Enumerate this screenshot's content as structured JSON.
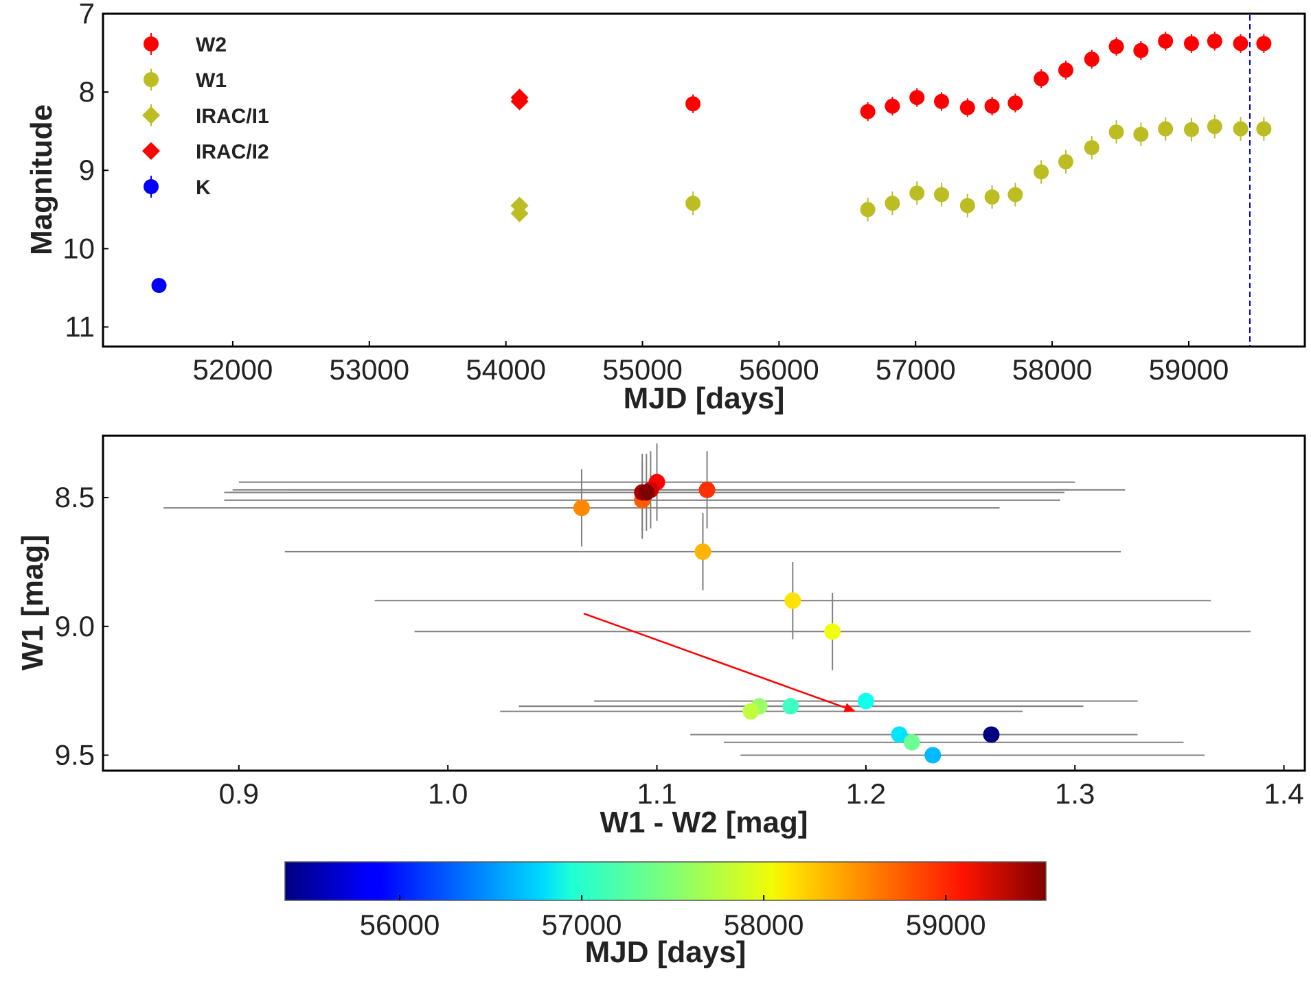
{
  "chart_data": [
    {
      "type": "scatter",
      "xlabel": "MJD [days]",
      "ylabel": "Magnitude",
      "xlim": [
        51050,
        59850
      ],
      "ylim": [
        7,
        11.25
      ],
      "y_inverted": true,
      "xticks": [
        52000,
        53000,
        54000,
        55000,
        56000,
        57000,
        58000,
        59000
      ],
      "yticks": [
        7,
        8,
        9,
        10,
        11
      ],
      "vline": {
        "x": 59550,
        "color": "#0000cc",
        "style": "dashed"
      },
      "legend_position": "top-left",
      "series": [
        {
          "name": "W2",
          "marker": "circle",
          "color": "#ff0000",
          "x": [
            55370,
            56650,
            56830,
            57010,
            57190,
            57380,
            57560,
            57730,
            57920,
            58100,
            58290,
            58470,
            58650,
            58830,
            59020,
            59190,
            59380,
            59550
          ],
          "y": [
            8.15,
            8.25,
            8.18,
            8.07,
            8.12,
            8.2,
            8.18,
            8.14,
            7.83,
            7.72,
            7.58,
            7.42,
            7.47,
            7.35,
            7.38,
            7.35,
            7.38,
            7.38
          ],
          "yerr": 0.12
        },
        {
          "name": "W1",
          "marker": "circle",
          "color": "#bcbd22",
          "x": [
            55370,
            56650,
            56830,
            57010,
            57190,
            57380,
            57560,
            57730,
            57920,
            58100,
            58290,
            58470,
            58650,
            58830,
            59020,
            59190,
            59380,
            59550
          ],
          "y": [
            9.42,
            9.5,
            9.42,
            9.29,
            9.31,
            9.45,
            9.34,
            9.31,
            9.02,
            8.89,
            8.71,
            8.51,
            8.54,
            8.47,
            8.48,
            8.44,
            8.47,
            8.47
          ],
          "yerr": 0.15
        },
        {
          "name": "IRAC/I1",
          "marker": "diamond",
          "color": "#bcbd22",
          "x": [
            54100,
            54100
          ],
          "y": [
            9.45,
            9.55
          ],
          "yerr": 0.0
        },
        {
          "name": "IRAC/I2",
          "marker": "diamond",
          "color": "#ff0000",
          "x": [
            54100,
            54100
          ],
          "y": [
            8.07,
            8.12
          ],
          "yerr": 0.0
        },
        {
          "name": "K",
          "marker": "circle",
          "color": "#0000ff",
          "x": [
            51460
          ],
          "y": [
            10.47
          ],
          "yerr": 0.0
        }
      ]
    },
    {
      "type": "scatter",
      "xlabel": "W1 - W2 [mag]",
      "ylabel": "W1 [mag]",
      "xlim": [
        0.835,
        1.41
      ],
      "ylim": [
        8.26,
        9.56
      ],
      "y_inverted": true,
      "xticks": [
        "0.9",
        "1.0",
        "1.1",
        "1.2",
        "1.3",
        "1.4"
      ],
      "yticks": [
        "8.5",
        "9.0",
        "9.5"
      ],
      "arrow": {
        "x1": 1.065,
        "y1": 8.95,
        "x2": 1.195,
        "y2": 9.33,
        "color": "#ff0000"
      },
      "points": [
        {
          "mjd": 55370,
          "x": 1.26,
          "y": 9.42,
          "xerr": [
            0.095,
            0.07
          ],
          "yerr": 0.0
        },
        {
          "mjd": 56650,
          "x": 1.232,
          "y": 9.5,
          "xerr": [
            0.092,
            0.13
          ],
          "yerr": 0.0
        },
        {
          "mjd": 56830,
          "x": 1.216,
          "y": 9.42,
          "xerr": [
            0.1,
            0.09
          ],
          "yerr": 0.0
        },
        {
          "mjd": 57010,
          "x": 1.2,
          "y": 9.29,
          "xerr": [
            0.13,
            0.13
          ],
          "yerr": 0.0
        },
        {
          "mjd": 57190,
          "x": 1.164,
          "y": 9.31,
          "xerr": [
            0.13,
            0.14
          ],
          "yerr": 0.0
        },
        {
          "mjd": 57380,
          "x": 1.222,
          "y": 9.45,
          "xerr": [
            0.09,
            0.13
          ],
          "yerr": 0.0
        },
        {
          "mjd": 57560,
          "x": 1.149,
          "y": 9.31,
          "xerr": [
            0.115,
            0.155
          ],
          "yerr": 0.0
        },
        {
          "mjd": 57730,
          "x": 1.145,
          "y": 9.33,
          "xerr": [
            0.12,
            0.13
          ],
          "yerr": 0.0
        },
        {
          "mjd": 57920,
          "x": 1.184,
          "y": 9.02,
          "xerr": [
            0.2,
            0.2
          ],
          "yerr": 0.15
        },
        {
          "mjd": 58100,
          "x": 1.165,
          "y": 8.9,
          "xerr": [
            0.2,
            0.2
          ],
          "yerr": 0.15
        },
        {
          "mjd": 58290,
          "x": 1.122,
          "y": 8.71,
          "xerr": [
            0.2,
            0.2
          ],
          "yerr": 0.15
        },
        {
          "mjd": 58470,
          "x": 1.064,
          "y": 8.54,
          "xerr": [
            0.2,
            0.2
          ],
          "yerr": 0.15
        },
        {
          "mjd": 58650,
          "x": 1.093,
          "y": 8.51,
          "xerr": [
            0.2,
            0.2
          ],
          "yerr": 0.15
        },
        {
          "mjd": 58830,
          "x": 1.124,
          "y": 8.47,
          "xerr": [
            0.2,
            0.2
          ],
          "yerr": 0.15
        },
        {
          "mjd": 59020,
          "x": 1.1,
          "y": 8.44,
          "xerr": [
            0.2,
            0.2
          ],
          "yerr": 0.15
        },
        {
          "mjd": 59190,
          "x": 1.097,
          "y": 8.47,
          "xerr": [
            0.2,
            0.2
          ],
          "yerr": 0.15
        },
        {
          "mjd": 59380,
          "x": 1.093,
          "y": 8.48,
          "xerr": [
            0.2,
            0.2
          ],
          "yerr": 0.15
        },
        {
          "mjd": 59550,
          "x": 1.095,
          "y": 8.48,
          "xerr": [
            0.2,
            0.2
          ],
          "yerr": 0.15
        }
      ],
      "colorbar": {
        "label": "MJD [days]",
        "range": [
          55370,
          59550
        ],
        "ticks": [
          "56000",
          "57000",
          "58000",
          "59000"
        ],
        "colormap": "jet"
      }
    }
  ]
}
